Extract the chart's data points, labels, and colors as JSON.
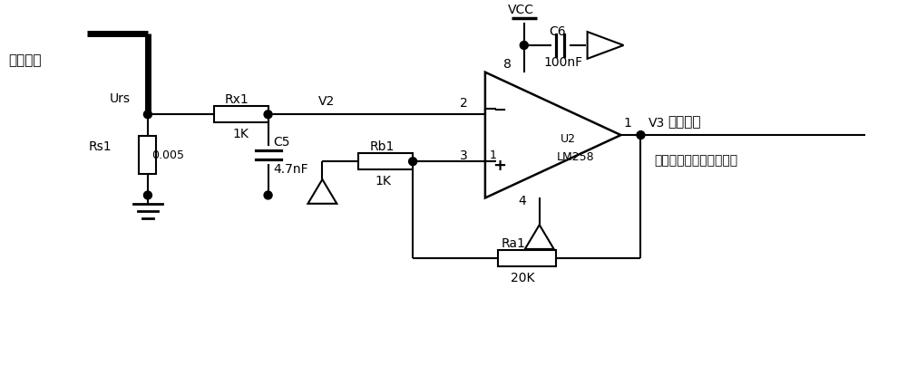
{
  "bg_color": "#ffffff",
  "line_color": "#000000",
  "lw": 1.5,
  "tlw": 5.0,
  "labels": {
    "load_path": "负载通路",
    "urs": "Urs",
    "rx1": "Rx1",
    "rx1_val": "1K",
    "v2": "V2",
    "rs1": "Rs1",
    "rs1_val": "0.005",
    "c5": "C5",
    "c5_val": "4.7nF",
    "rb1": "Rb1",
    "rb1_val": "1K",
    "vcc": "VCC",
    "c6": "C6",
    "c6_val": "100nF",
    "u2": "U2",
    "lm258": "LM258",
    "v3": "V3",
    "feedback": "反馈信号",
    "feedback2": "接反馈模块比较器输入端",
    "ra1": "Ra1",
    "ra1_val": "20K",
    "pin2": "2",
    "pin3": "3",
    "pin1": "1",
    "pin4": "4",
    "pin8": "8",
    "pin1b": "1",
    "minus": "−",
    "plus": "+"
  }
}
